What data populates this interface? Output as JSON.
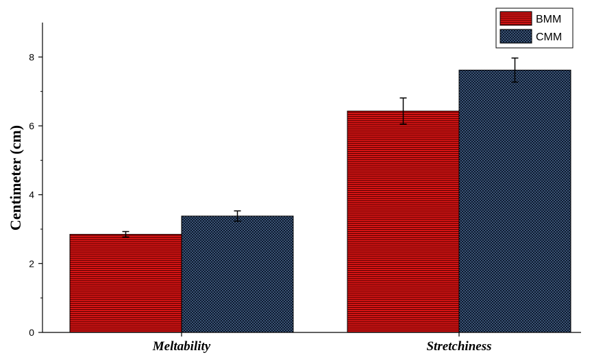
{
  "chart_data": {
    "type": "bar",
    "title": "",
    "xlabel": "",
    "ylabel": "Centimeter (cm)",
    "categories": [
      "Meltability",
      "Stretchiness"
    ],
    "series": [
      {
        "name": "BMM",
        "values": [
          2.85,
          6.43
        ],
        "errors": [
          0.08,
          0.38
        ],
        "color": "#cc1111",
        "pattern": "horizontal-lines"
      },
      {
        "name": "CMM",
        "values": [
          3.38,
          7.62
        ],
        "errors": [
          0.15,
          0.35
        ],
        "color": "#1f3350",
        "pattern": "dots"
      }
    ],
    "ylim": [
      0,
      9
    ],
    "yticks": [
      0,
      2,
      4,
      6,
      8
    ],
    "legend": "top-right",
    "grid": false
  }
}
